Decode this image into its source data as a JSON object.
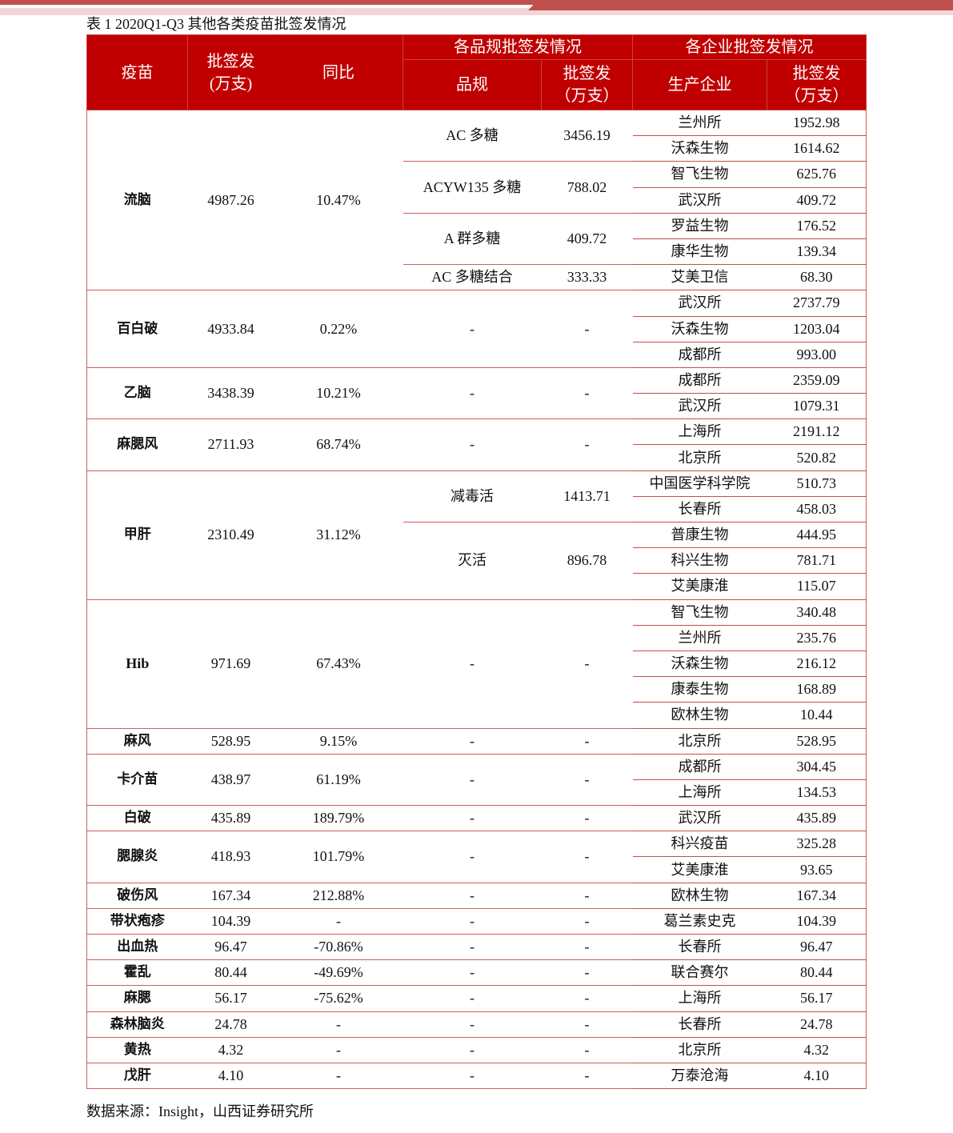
{
  "caption": "表 1 2020Q1-Q3 其他各类疫苗批签发情况",
  "source": "数据来源：Insight，山西证券研究所",
  "colors": {
    "header_bg": "#c00000",
    "line": "#c0504d"
  },
  "header": {
    "vaccine": "疫苗",
    "volume": "批签发(万支)",
    "yoy": "同比",
    "spec_group": "各品规批签发情况",
    "spec": "品规",
    "spec_volume": "批签发（万支）",
    "company_group": "各企业批签发情况",
    "company": "生产企业",
    "company_volume": "批签发（万支）"
  },
  "vaccines": [
    {
      "name": "流脑",
      "volume": "4987.26",
      "yoy": "10.47%",
      "specs": [
        {
          "name": "AC 多糖",
          "volume": "3456.19",
          "companies": [
            {
              "name": "兰州所",
              "volume": "1952.98"
            },
            {
              "name": "沃森生物",
              "volume": "1614.62"
            }
          ]
        },
        {
          "name": "ACYW135 多糖",
          "volume": "788.02",
          "companies": [
            {
              "name": "智飞生物",
              "volume": "625.76"
            },
            {
              "name": "武汉所",
              "volume": "409.72"
            }
          ]
        },
        {
          "name": "A 群多糖",
          "volume": "409.72",
          "companies": [
            {
              "name": "罗益生物",
              "volume": "176.52"
            },
            {
              "name": "康华生物",
              "volume": "139.34"
            }
          ]
        },
        {
          "name": "AC 多糖结合",
          "volume": "333.33",
          "companies": [
            {
              "name": "艾美卫信",
              "volume": "68.30"
            }
          ]
        }
      ]
    },
    {
      "name": "百白破",
      "volume": "4933.84",
      "yoy": "0.22%",
      "specs": [
        {
          "name": "-",
          "volume": "-",
          "companies": [
            {
              "name": "武汉所",
              "volume": "2737.79"
            },
            {
              "name": "沃森生物",
              "volume": "1203.04"
            },
            {
              "name": "成都所",
              "volume": "993.00"
            }
          ]
        }
      ]
    },
    {
      "name": "乙脑",
      "volume": "3438.39",
      "yoy": "10.21%",
      "specs": [
        {
          "name": "-",
          "volume": "-",
          "companies": [
            {
              "name": "成都所",
              "volume": "2359.09"
            },
            {
              "name": "武汉所",
              "volume": "1079.31"
            }
          ]
        }
      ]
    },
    {
      "name": "麻腮风",
      "volume": "2711.93",
      "yoy": "68.74%",
      "specs": [
        {
          "name": "-",
          "volume": "-",
          "companies": [
            {
              "name": "上海所",
              "volume": "2191.12"
            },
            {
              "name": "北京所",
              "volume": "520.82"
            }
          ]
        }
      ]
    },
    {
      "name": "甲肝",
      "volume": "2310.49",
      "yoy": "31.12%",
      "specs": [
        {
          "name": "减毒活",
          "volume": "1413.71",
          "companies": [
            {
              "name": "中国医学科学院",
              "volume": "510.73"
            },
            {
              "name": "长春所",
              "volume": "458.03"
            }
          ]
        },
        {
          "name": "灭活",
          "volume": "896.78",
          "companies": [
            {
              "name": "普康生物",
              "volume": "444.95"
            },
            {
              "name": "科兴生物",
              "volume": "781.71"
            },
            {
              "name": "艾美康淮",
              "volume": "115.07"
            }
          ]
        }
      ]
    },
    {
      "name": "Hib",
      "volume": "971.69",
      "yoy": "67.43%",
      "specs": [
        {
          "name": "-",
          "volume": "-",
          "companies": [
            {
              "name": "智飞生物",
              "volume": "340.48"
            },
            {
              "name": "兰州所",
              "volume": "235.76"
            },
            {
              "name": "沃森生物",
              "volume": "216.12"
            },
            {
              "name": "康泰生物",
              "volume": "168.89"
            },
            {
              "name": "欧林生物",
              "volume": "10.44"
            }
          ]
        }
      ]
    },
    {
      "name": "麻风",
      "volume": "528.95",
      "yoy": "9.15%",
      "specs": [
        {
          "name": "-",
          "volume": "-",
          "companies": [
            {
              "name": "北京所",
              "volume": "528.95"
            }
          ]
        }
      ]
    },
    {
      "name": "卡介苗",
      "volume": "438.97",
      "yoy": "61.19%",
      "specs": [
        {
          "name": "-",
          "volume": "-",
          "companies": [
            {
              "name": "成都所",
              "volume": "304.45"
            },
            {
              "name": "上海所",
              "volume": "134.53"
            }
          ]
        }
      ]
    },
    {
      "name": "白破",
      "volume": "435.89",
      "yoy": "189.79%",
      "specs": [
        {
          "name": "-",
          "volume": "-",
          "companies": [
            {
              "name": "武汉所",
              "volume": "435.89"
            }
          ]
        }
      ]
    },
    {
      "name": "腮腺炎",
      "volume": "418.93",
      "yoy": "101.79%",
      "specs": [
        {
          "name": "-",
          "volume": "-",
          "companies": [
            {
              "name": "科兴疫苗",
              "volume": "325.28"
            },
            {
              "name": "艾美康淮",
              "volume": "93.65"
            }
          ]
        }
      ]
    },
    {
      "name": "破伤风",
      "volume": "167.34",
      "yoy": "212.88%",
      "specs": [
        {
          "name": "-",
          "volume": "-",
          "companies": [
            {
              "name": "欧林生物",
              "volume": "167.34"
            }
          ]
        }
      ]
    },
    {
      "name": "带状疱疹",
      "volume": "104.39",
      "yoy": "-",
      "specs": [
        {
          "name": "-",
          "volume": "-",
          "companies": [
            {
              "name": "葛兰素史克",
              "volume": "104.39"
            }
          ]
        }
      ]
    },
    {
      "name": "出血热",
      "volume": "96.47",
      "yoy": "-70.86%",
      "specs": [
        {
          "name": "-",
          "volume": "-",
          "companies": [
            {
              "name": "长春所",
              "volume": "96.47"
            }
          ]
        }
      ]
    },
    {
      "name": "霍乱",
      "volume": "80.44",
      "yoy": "-49.69%",
      "specs": [
        {
          "name": "-",
          "volume": "-",
          "companies": [
            {
              "name": "联合赛尔",
              "volume": "80.44"
            }
          ]
        }
      ]
    },
    {
      "name": "麻腮",
      "volume": "56.17",
      "yoy": "-75.62%",
      "specs": [
        {
          "name": "-",
          "volume": "-",
          "companies": [
            {
              "name": "上海所",
              "volume": "56.17"
            }
          ]
        }
      ]
    },
    {
      "name": "森林脑炎",
      "volume": "24.78",
      "yoy": "-",
      "specs": [
        {
          "name": "-",
          "volume": "-",
          "companies": [
            {
              "name": "长春所",
              "volume": "24.78"
            }
          ]
        }
      ]
    },
    {
      "name": "黄热",
      "volume": "4.32",
      "yoy": "-",
      "specs": [
        {
          "name": "-",
          "volume": "-",
          "companies": [
            {
              "name": "北京所",
              "volume": "4.32"
            }
          ]
        }
      ]
    },
    {
      "name": "戊肝",
      "volume": "4.10",
      "yoy": "-",
      "specs": [
        {
          "name": "-",
          "volume": "-",
          "companies": [
            {
              "name": "万泰沧海",
              "volume": "4.10"
            }
          ]
        }
      ]
    }
  ]
}
